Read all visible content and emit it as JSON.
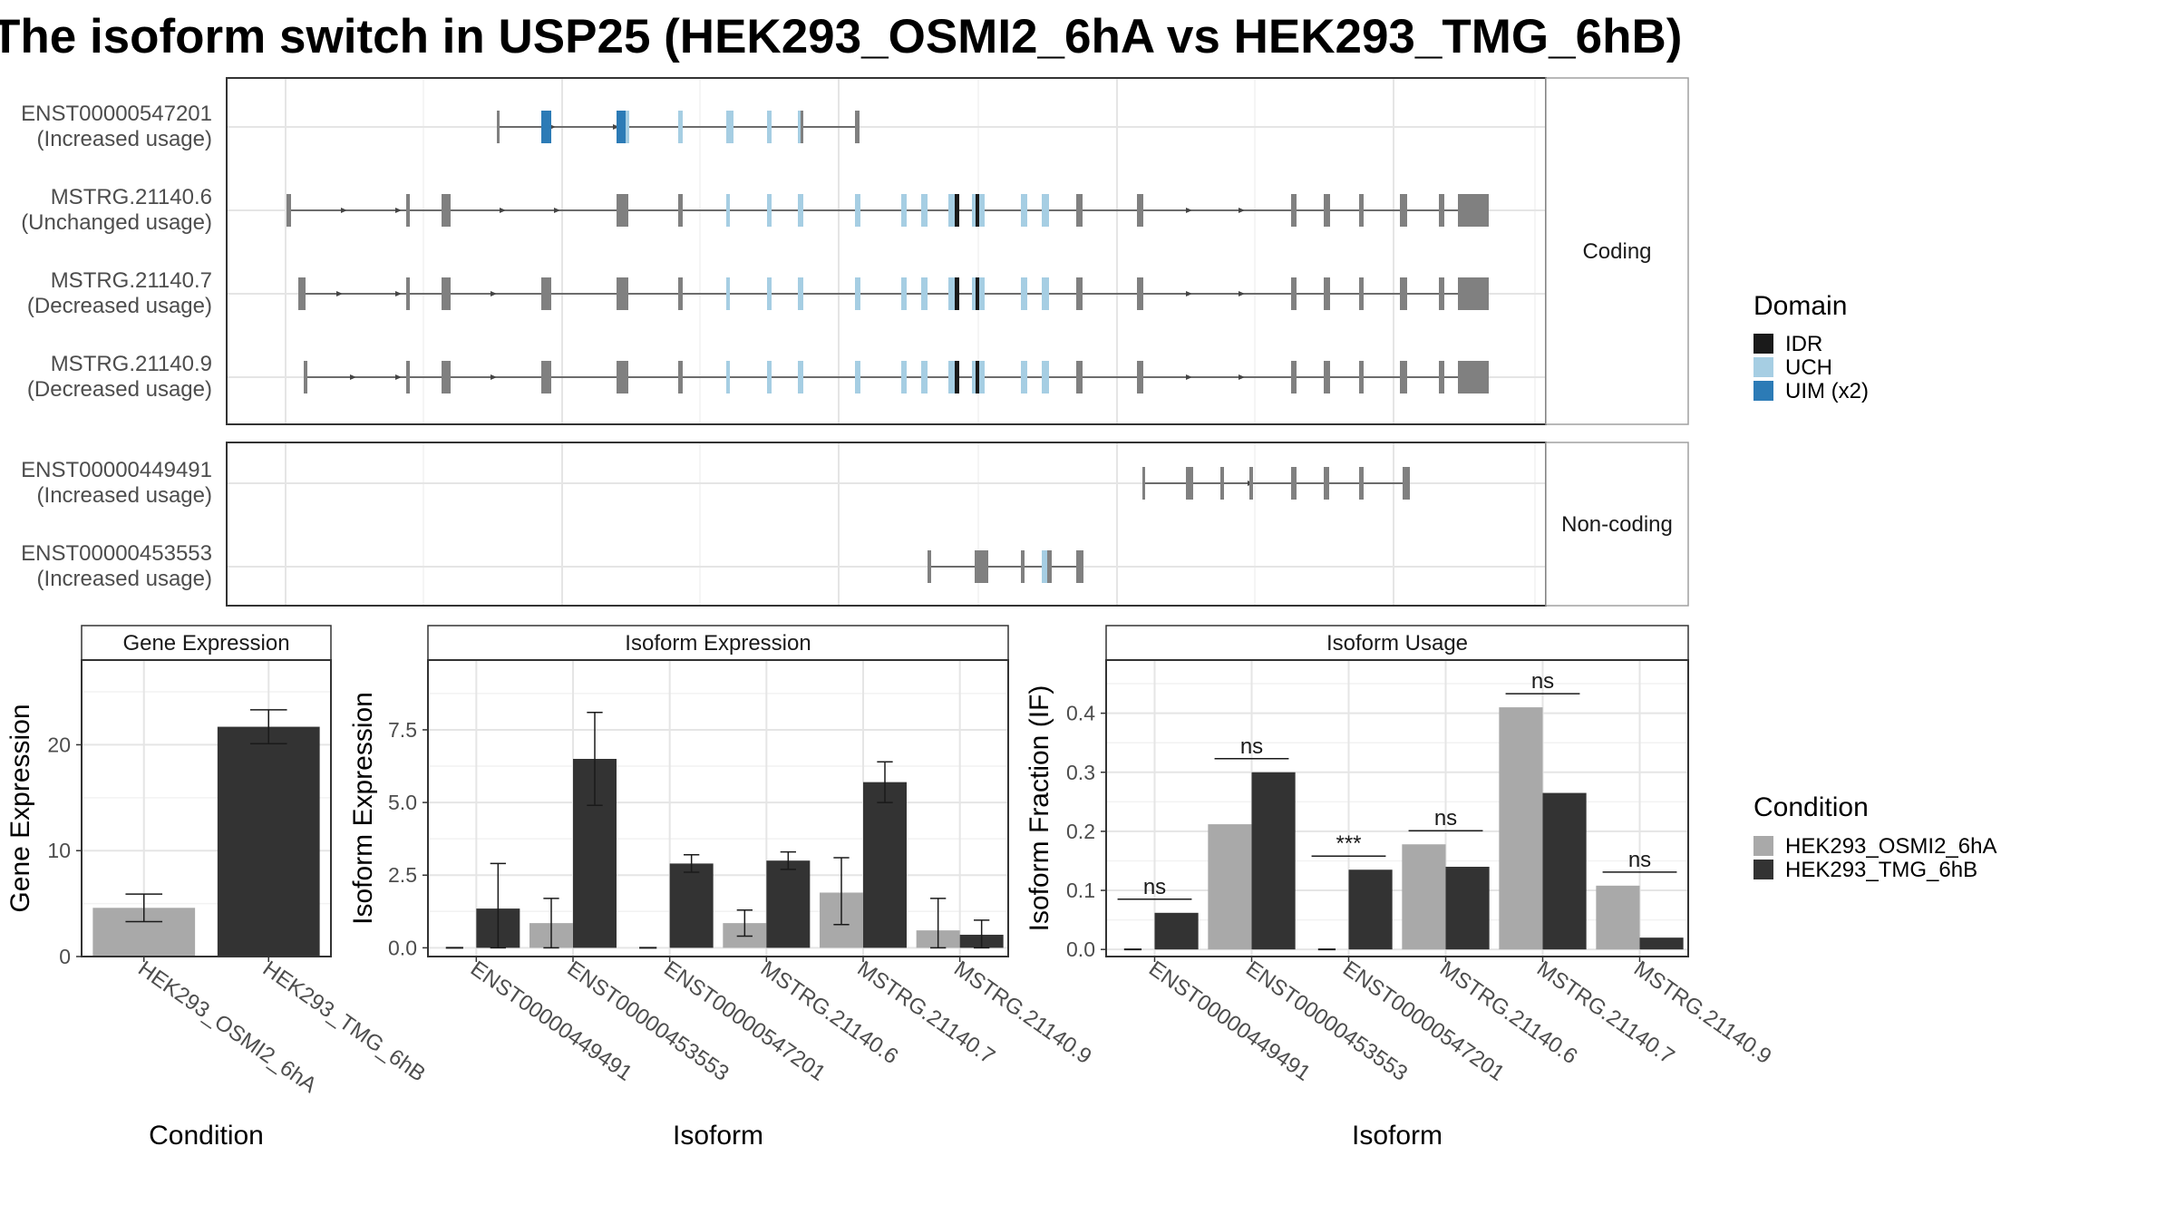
{
  "title": "The isoform switch in USP25 (HEK293_OSMI2_6hA vs HEK293_TMG_6hB)",
  "colors": {
    "idr": "#1a1a1a",
    "uch": "#a6cee3",
    "uim": "#2c7bb6",
    "exon": "#808080",
    "condA": "#a9a9a9",
    "condB": "#333333",
    "panel_border": "#333333",
    "grid_major": "#e5e5e5",
    "grid_minor": "#f2f2f2",
    "strip_fill": "#ffffff"
  },
  "structure": {
    "facets": [
      {
        "label": "Coding",
        "transcripts": [
          {
            "id": "ENST00000547201",
            "usage": "(Increased usage)"
          },
          {
            "id": "MSTRG.21140.6",
            "usage": "(Unchanged usage)"
          },
          {
            "id": "MSTRG.21140.7",
            "usage": "(Decreased usage)"
          },
          {
            "id": "MSTRG.21140.9",
            "usage": "(Decreased usage)"
          }
        ]
      },
      {
        "label": "Non-coding",
        "transcripts": [
          {
            "id": "ENST00000449491",
            "usage": "(Increased usage)"
          },
          {
            "id": "ENST00000453553",
            "usage": "(Increased usage)"
          }
        ]
      }
    ],
    "legend_title": "Domain",
    "domains": [
      {
        "name": "IDR",
        "color": "#1a1a1a"
      },
      {
        "name": "UCH",
        "color": "#a6cee3"
      },
      {
        "name": "UIM (x2)",
        "color": "#2c7bb6"
      }
    ]
  },
  "chart_data": [
    {
      "type": "bar",
      "title": "Gene Expression",
      "xlabel": "Condition",
      "ylabel": "Gene Expression",
      "categories": [
        "HEK293_OSMI2_6hA",
        "HEK293_TMG_6hB"
      ],
      "values": [
        4.6,
        21.7
      ],
      "errors": [
        [
          3.3,
          5.9
        ],
        [
          20.1,
          23.3
        ]
      ],
      "ylim": [
        0,
        28
      ],
      "yticks": [
        "0",
        "10",
        "20"
      ]
    },
    {
      "type": "bar",
      "title": "Isoform Expression",
      "xlabel": "Isoform",
      "ylabel": "Isoform Expression",
      "categories": [
        "ENST00000449491",
        "ENST00000453553",
        "ENST00000547201",
        "MSTRG.21140.6",
        "MSTRG.21140.7",
        "MSTRG.21140.9"
      ],
      "series": [
        {
          "name": "HEK293_OSMI2_6hA",
          "values": [
            0.0,
            0.85,
            0.0,
            0.85,
            1.9,
            0.6
          ],
          "errors": [
            [
              0,
              0
            ],
            [
              0.0,
              1.7
            ],
            [
              0,
              0
            ],
            [
              0.4,
              1.3
            ],
            [
              0.8,
              3.1
            ],
            [
              0.0,
              1.7
            ]
          ]
        },
        {
          "name": "HEK293_TMG_6hB",
          "values": [
            1.35,
            6.5,
            2.9,
            3.0,
            5.7,
            0.45
          ],
          "errors": [
            [
              0.0,
              2.9
            ],
            [
              4.9,
              8.1
            ],
            [
              2.6,
              3.2
            ],
            [
              2.7,
              3.3
            ],
            [
              5.0,
              6.4
            ],
            [
              0.0,
              0.95
            ]
          ]
        }
      ],
      "ylim": [
        -0.3,
        9.9
      ],
      "yticks": [
        "0.0",
        "2.5",
        "5.0",
        "7.5"
      ]
    },
    {
      "type": "bar",
      "title": "Isoform Usage",
      "xlabel": "Isoform",
      "ylabel": "Isoform Fraction (IF)",
      "categories": [
        "ENST00000449491",
        "ENST00000453553",
        "ENST00000547201",
        "MSTRG.21140.6",
        "MSTRG.21140.7",
        "MSTRG.21140.9"
      ],
      "series": [
        {
          "name": "HEK293_OSMI2_6hA",
          "values": [
            0.0,
            0.212,
            0.0,
            0.178,
            0.41,
            0.108
          ]
        },
        {
          "name": "HEK293_TMG_6hB",
          "values": [
            0.062,
            0.3,
            0.135,
            0.14,
            0.265,
            0.02
          ]
        }
      ],
      "significance": [
        "ns",
        "ns",
        "***",
        "ns",
        "ns",
        "ns"
      ],
      "ylim": [
        -0.012,
        0.49
      ],
      "yticks": [
        "0.0",
        "0.1",
        "0.2",
        "0.3",
        "0.4"
      ]
    }
  ],
  "condition_legend": {
    "title": "Condition",
    "items": [
      {
        "name": "HEK293_OSMI2_6hA",
        "color": "#a9a9a9"
      },
      {
        "name": "HEK293_TMG_6hB",
        "color": "#333333"
      }
    ]
  }
}
